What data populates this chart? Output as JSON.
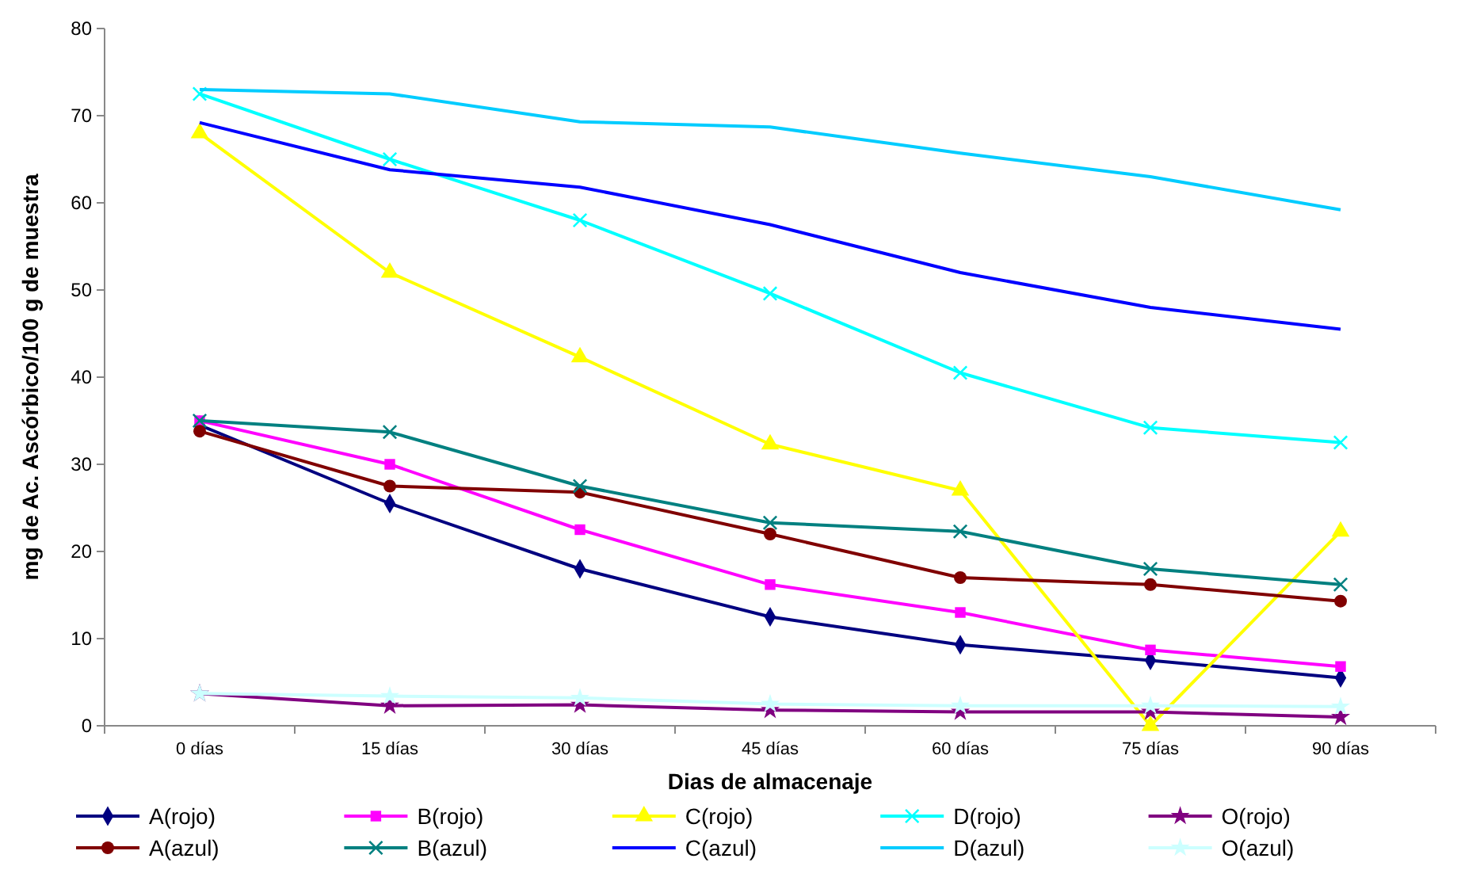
{
  "chart_data": {
    "type": "line",
    "xlabel": "Dias de almacenaje",
    "ylabel": "mg de Ac. Ascórbico/100  g de muestra",
    "categories": [
      "0 días",
      "15 días",
      "30 días",
      "45 días",
      "60 días",
      "75 días",
      "90 días"
    ],
    "ylim": [
      0,
      80
    ],
    "yticks": [
      0,
      10,
      20,
      30,
      40,
      50,
      60,
      70,
      80
    ],
    "grid": false,
    "legend": "bottom",
    "series": [
      {
        "name": "A(rojo)",
        "color": "#000080",
        "marker": "diamond",
        "values": [
          34.5,
          25.5,
          18,
          12.5,
          9.3,
          7.5,
          5.5
        ]
      },
      {
        "name": "B(rojo)",
        "color": "#ff00ff",
        "marker": "square",
        "values": [
          35,
          30,
          22.5,
          16.2,
          13,
          8.7,
          6.8
        ]
      },
      {
        "name": "C(rojo)",
        "color": "#ffff00",
        "marker": "triangle",
        "values": [
          68,
          52,
          42.3,
          32.3,
          27,
          0,
          22.3
        ]
      },
      {
        "name": "D(rojo)",
        "color": "#00ffff",
        "marker": "cross",
        "values": [
          72.5,
          65,
          58,
          49.6,
          40.5,
          34.2,
          32.5
        ]
      },
      {
        "name": "O(rojo)",
        "color": "#800080",
        "marker": "star",
        "values": [
          3.7,
          2.3,
          2.4,
          1.8,
          1.6,
          1.6,
          1.0
        ]
      },
      {
        "name": "A(azul)",
        "color": "#800000",
        "marker": "circle",
        "values": [
          33.8,
          27.5,
          26.8,
          22,
          17,
          16.2,
          14.3
        ]
      },
      {
        "name": "B(azul)",
        "color": "#008080",
        "marker": "cross",
        "values": [
          35,
          33.7,
          27.5,
          23.3,
          22.3,
          18,
          16.2
        ]
      },
      {
        "name": "C(azul)",
        "color": "#0000ff",
        "marker": "none",
        "values": [
          69.2,
          63.8,
          61.8,
          57.5,
          52,
          48,
          45.5
        ]
      },
      {
        "name": "D(azul)",
        "color": "#00ccff",
        "marker": "none",
        "values": [
          73,
          72.5,
          69.3,
          68.7,
          65.7,
          63,
          59.2
        ]
      },
      {
        "name": "O(azul)",
        "color": "#ccffff",
        "marker": "star",
        "values": [
          3.7,
          3.4,
          3.2,
          2.5,
          2.3,
          2.3,
          2.2
        ]
      }
    ]
  }
}
